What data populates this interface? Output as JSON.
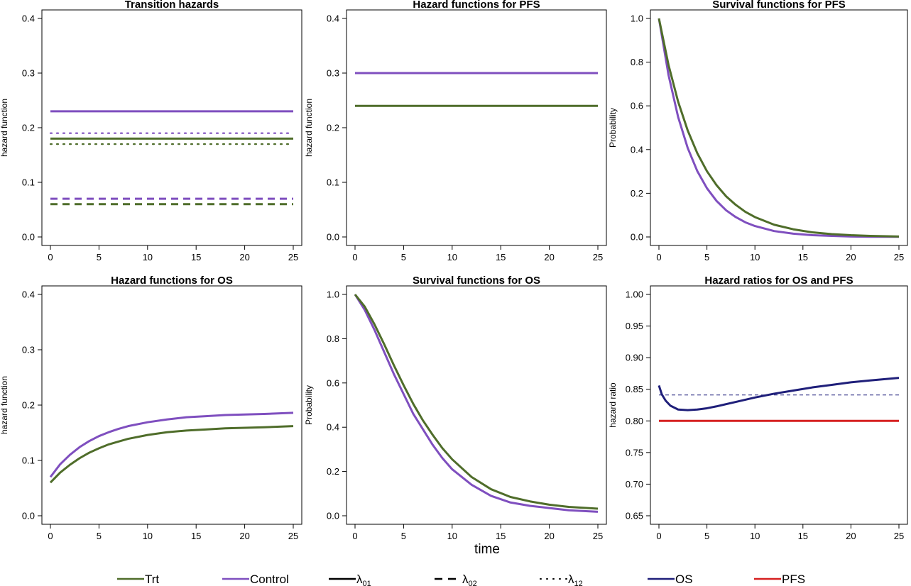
{
  "chart_data": [
    {
      "type": "line",
      "title": "Transition hazards",
      "ylabel": "hazard function",
      "xlim": [
        0,
        25
      ],
      "ylim": [
        0,
        0.4
      ],
      "xticks": [
        0,
        5,
        10,
        15,
        20,
        25
      ],
      "yticks": [
        0.0,
        0.1,
        0.2,
        0.3,
        0.4
      ],
      "ytick_labels": [
        "0.0",
        "0.1",
        "0.2",
        "0.3",
        "0.4"
      ],
      "series": [
        {
          "name": "Control λ01",
          "color": "#7f4fbf",
          "style": "solid",
          "x": [
            0,
            25
          ],
          "y": [
            0.23,
            0.23
          ]
        },
        {
          "name": "Trt λ01",
          "color": "#4f6d2a",
          "style": "solid",
          "x": [
            0,
            25
          ],
          "y": [
            0.18,
            0.18
          ]
        },
        {
          "name": "Control λ12",
          "color": "#7f4fbf",
          "style": "dotted",
          "x": [
            0,
            25
          ],
          "y": [
            0.19,
            0.19
          ]
        },
        {
          "name": "Trt λ12",
          "color": "#4f6d2a",
          "style": "dotted",
          "x": [
            0,
            25
          ],
          "y": [
            0.17,
            0.17
          ]
        },
        {
          "name": "Control λ02",
          "color": "#7f4fbf",
          "style": "dashed",
          "x": [
            0,
            25
          ],
          "y": [
            0.07,
            0.07
          ]
        },
        {
          "name": "Trt λ02",
          "color": "#4f6d2a",
          "style": "dashed",
          "x": [
            0,
            25
          ],
          "y": [
            0.06,
            0.06
          ]
        }
      ]
    },
    {
      "type": "line",
      "title": "Hazard functions for PFS",
      "ylabel": "hazard function",
      "xlim": [
        0,
        25
      ],
      "ylim": [
        0,
        0.4
      ],
      "xticks": [
        0,
        5,
        10,
        15,
        20,
        25
      ],
      "yticks": [
        0.0,
        0.1,
        0.2,
        0.3,
        0.4
      ],
      "ytick_labels": [
        "0.0",
        "0.1",
        "0.2",
        "0.3",
        "0.4"
      ],
      "series": [
        {
          "name": "Control",
          "color": "#7f4fbf",
          "style": "solid",
          "x": [
            0,
            25
          ],
          "y": [
            0.3,
            0.3
          ]
        },
        {
          "name": "Trt",
          "color": "#4f6d2a",
          "style": "solid",
          "x": [
            0,
            25
          ],
          "y": [
            0.24,
            0.24
          ]
        }
      ]
    },
    {
      "type": "line",
      "title": "Survival functions for PFS",
      "ylabel": "Probability",
      "xlim": [
        0,
        25
      ],
      "ylim": [
        0,
        1
      ],
      "xticks": [
        0,
        5,
        10,
        15,
        20,
        25
      ],
      "yticks": [
        0.0,
        0.2,
        0.4,
        0.6,
        0.8,
        1.0
      ],
      "ytick_labels": [
        "0.0",
        "0.2",
        "0.4",
        "0.6",
        "0.8",
        "1.0"
      ],
      "series": [
        {
          "name": "Control",
          "color": "#7f4fbf",
          "style": "solid",
          "x": [
            0,
            1,
            2,
            3,
            4,
            5,
            6,
            7,
            8,
            9,
            10,
            12,
            14,
            16,
            18,
            20,
            22,
            25
          ],
          "y": [
            1.0,
            0.741,
            0.549,
            0.407,
            0.301,
            0.223,
            0.165,
            0.122,
            0.091,
            0.067,
            0.05,
            0.027,
            0.015,
            0.008,
            0.005,
            0.002,
            0.001,
            0.001
          ]
        },
        {
          "name": "Trt",
          "color": "#4f6d2a",
          "style": "solid",
          "x": [
            0,
            1,
            2,
            3,
            4,
            5,
            6,
            7,
            8,
            9,
            10,
            12,
            14,
            16,
            18,
            20,
            22,
            25
          ],
          "y": [
            1.0,
            0.787,
            0.619,
            0.487,
            0.383,
            0.301,
            0.237,
            0.186,
            0.147,
            0.115,
            0.091,
            0.056,
            0.035,
            0.021,
            0.013,
            0.008,
            0.005,
            0.002
          ]
        }
      ]
    },
    {
      "type": "line",
      "title": "Hazard functions for OS",
      "ylabel": "hazard function",
      "xlim": [
        0,
        25
      ],
      "ylim": [
        0,
        0.4
      ],
      "xticks": [
        0,
        5,
        10,
        15,
        20,
        25
      ],
      "yticks": [
        0.0,
        0.1,
        0.2,
        0.3,
        0.4
      ],
      "ytick_labels": [
        "0.0",
        "0.1",
        "0.2",
        "0.3",
        "0.4"
      ],
      "series": [
        {
          "name": "Control",
          "color": "#7f4fbf",
          "style": "solid",
          "x": [
            0,
            1,
            2,
            3,
            4,
            5,
            6,
            7,
            8,
            10,
            12,
            14,
            16,
            18,
            20,
            22,
            25
          ],
          "y": [
            0.07,
            0.093,
            0.11,
            0.124,
            0.135,
            0.144,
            0.151,
            0.157,
            0.162,
            0.169,
            0.174,
            0.178,
            0.18,
            0.182,
            0.183,
            0.184,
            0.186
          ]
        },
        {
          "name": "Trt",
          "color": "#4f6d2a",
          "style": "solid",
          "x": [
            0,
            1,
            2,
            3,
            4,
            5,
            6,
            7,
            8,
            10,
            12,
            14,
            16,
            18,
            20,
            22,
            25
          ],
          "y": [
            0.06,
            0.078,
            0.092,
            0.104,
            0.114,
            0.122,
            0.129,
            0.134,
            0.139,
            0.146,
            0.151,
            0.154,
            0.156,
            0.158,
            0.159,
            0.16,
            0.162
          ]
        }
      ]
    },
    {
      "type": "line",
      "title": "Survival functions for OS",
      "ylabel": "Probability",
      "xlabel": "time",
      "xlim": [
        0,
        25
      ],
      "ylim": [
        0,
        1
      ],
      "xticks": [
        0,
        5,
        10,
        15,
        20,
        25
      ],
      "yticks": [
        0.0,
        0.2,
        0.4,
        0.6,
        0.8,
        1.0
      ],
      "ytick_labels": [
        "0.0",
        "0.2",
        "0.4",
        "0.6",
        "0.8",
        "1.0"
      ],
      "series": [
        {
          "name": "Control",
          "color": "#7f4fbf",
          "style": "solid",
          "x": [
            0,
            1,
            2,
            3,
            4,
            5,
            6,
            7,
            8,
            9,
            10,
            12,
            14,
            16,
            18,
            20,
            22,
            25
          ],
          "y": [
            1.0,
            0.93,
            0.84,
            0.74,
            0.64,
            0.55,
            0.46,
            0.39,
            0.32,
            0.26,
            0.21,
            0.14,
            0.09,
            0.06,
            0.045,
            0.035,
            0.025,
            0.018
          ]
        },
        {
          "name": "Trt",
          "color": "#4f6d2a",
          "style": "solid",
          "x": [
            0,
            1,
            2,
            3,
            4,
            5,
            6,
            7,
            8,
            9,
            10,
            12,
            14,
            16,
            18,
            20,
            22,
            25
          ],
          "y": [
            1.0,
            0.945,
            0.865,
            0.775,
            0.68,
            0.59,
            0.505,
            0.43,
            0.365,
            0.305,
            0.255,
            0.175,
            0.12,
            0.085,
            0.065,
            0.05,
            0.04,
            0.032
          ]
        }
      ]
    },
    {
      "type": "line",
      "title": "Hazard ratios for OS and PFS",
      "ylabel": "hazard ratio",
      "xlim": [
        0,
        25
      ],
      "ylim": [
        0.65,
        1.0
      ],
      "xticks": [
        0,
        5,
        10,
        15,
        20,
        25
      ],
      "yticks": [
        0.65,
        0.7,
        0.75,
        0.8,
        0.85,
        0.9,
        0.95,
        1.0
      ],
      "ytick_labels": [
        "0.65",
        "0.70",
        "0.75",
        "0.80",
        "0.85",
        "0.90",
        "0.95",
        "1.00"
      ],
      "series": [
        {
          "name": "OS",
          "color": "#1f1f7a",
          "style": "solid",
          "x": [
            0,
            0.3,
            0.7,
            1.2,
            2,
            3,
            4,
            5,
            6,
            8,
            10,
            12,
            14,
            16,
            18,
            20,
            22,
            25
          ],
          "y": [
            0.856,
            0.842,
            0.832,
            0.824,
            0.818,
            0.817,
            0.818,
            0.82,
            0.823,
            0.83,
            0.837,
            0.843,
            0.848,
            0.853,
            0.857,
            0.861,
            0.864,
            0.868
          ]
        },
        {
          "name": "OS reference",
          "color": "#1f1f7a",
          "style": "dashed-thin",
          "x": [
            0,
            25
          ],
          "y": [
            0.841,
            0.841
          ]
        },
        {
          "name": "PFS",
          "color": "#d62020",
          "style": "solid",
          "x": [
            0,
            25
          ],
          "y": [
            0.8,
            0.8
          ]
        }
      ]
    }
  ],
  "legend": [
    {
      "label": "Trt",
      "sub": "",
      "color": "#4f6d2a",
      "style": "solid"
    },
    {
      "label": "Control",
      "sub": "",
      "color": "#7f4fbf",
      "style": "solid"
    },
    {
      "label": "λ",
      "sub": "01",
      "color": "#000000",
      "style": "solid"
    },
    {
      "label": "λ",
      "sub": "02",
      "color": "#000000",
      "style": "dashed"
    },
    {
      "label": "λ",
      "sub": "12",
      "color": "#000000",
      "style": "dotted"
    },
    {
      "label": "OS",
      "sub": "",
      "color": "#1f1f7a",
      "style": "solid"
    },
    {
      "label": "PFS",
      "sub": "",
      "color": "#d62020",
      "style": "solid"
    }
  ]
}
